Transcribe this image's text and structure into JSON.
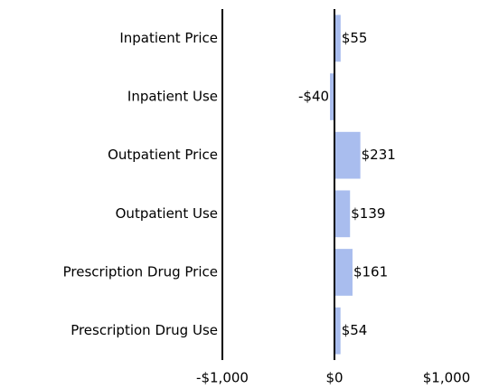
{
  "chart_data": {
    "type": "bar",
    "orientation": "horizontal",
    "categories": [
      "Inpatient Price",
      "Inpatient Use",
      "Outpatient Price",
      "Outpatient Use",
      "Prescription Drug Price",
      "Prescription Drug Use"
    ],
    "values": [
      55,
      -40,
      231,
      139,
      161,
      54
    ],
    "value_labels": [
      "$55",
      "-$40",
      "$231",
      "$139",
      "$161",
      "$54"
    ],
    "color": "#a9bdee",
    "xlim": [
      -1000,
      1000
    ],
    "xticks": [
      {
        "value": -1000,
        "label": "-$1,000"
      },
      {
        "value": 0,
        "label": "$0"
      },
      {
        "value": 1000,
        "label": "$1,000"
      }
    ],
    "grid": false
  }
}
